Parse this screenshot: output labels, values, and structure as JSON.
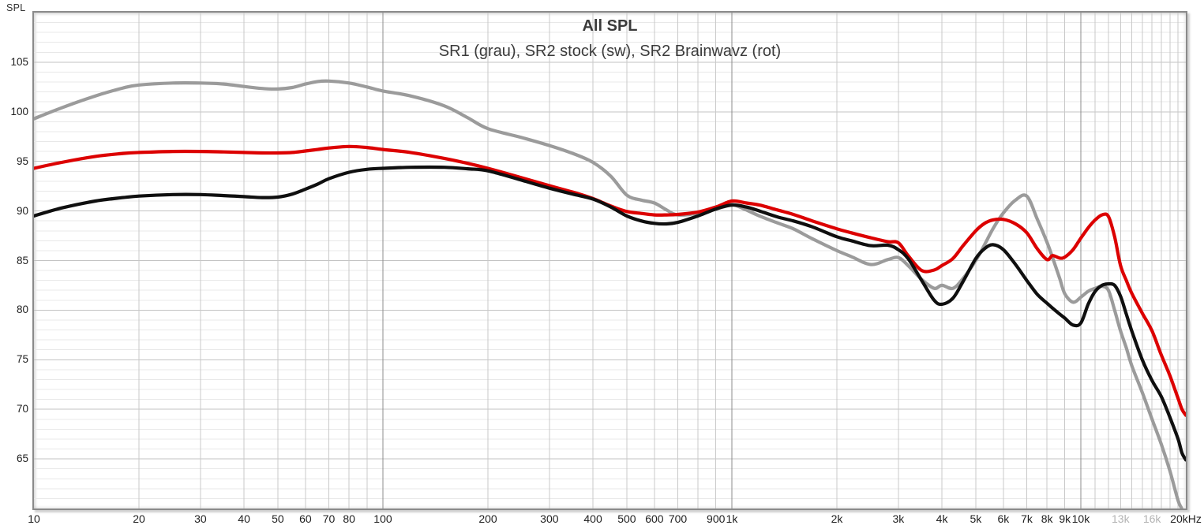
{
  "chart": {
    "spl_axis_label": "SPL",
    "title": "All SPL",
    "subtitle": "SR1 (grau), SR2 stock (sw), SR2 Brainwavz (rot)",
    "colors": {
      "background": "#ffffff",
      "border": "#8a8a8a",
      "grid_h_minor": "#e8e8e8",
      "grid_h_major": "#c3c3c3",
      "grid_v_minor": "#c9c9c9",
      "grid_v_decade": "#8c8c8c",
      "text_dark": "#3a3a3a",
      "text_tick": "#1f1f1f",
      "text_muted": "#b3b3b3"
    }
  },
  "chart_data": {
    "type": "line",
    "title": "All SPL",
    "subtitle": "SR1 (grau), SR2 stock (sw), SR2 Brainwavz (rot)",
    "ylabel": "SPL",
    "x_scale": "log",
    "xlim": [
      10,
      20000
    ],
    "ylim": [
      60,
      110
    ],
    "grid": {
      "h_minor_step_db": 1,
      "h_major_step_db": 5,
      "v_minor": [
        20,
        30,
        40,
        50,
        60,
        70,
        80,
        90,
        200,
        300,
        400,
        500,
        600,
        700,
        800,
        900,
        2000,
        3000,
        4000,
        5000,
        6000,
        7000,
        8000,
        9000,
        11000,
        12000,
        13000,
        14000,
        15000,
        16000,
        17000,
        18000,
        19000
      ],
      "v_decade": [
        100,
        1000,
        10000
      ]
    },
    "y_tick_labels": [
      105,
      100,
      95,
      90,
      85,
      80,
      75,
      70,
      65
    ],
    "x_tick_labels": [
      {
        "label": "10",
        "f": 10,
        "muted": false
      },
      {
        "label": "20",
        "f": 20,
        "muted": false
      },
      {
        "label": "30",
        "f": 30,
        "muted": false
      },
      {
        "label": "40",
        "f": 40,
        "muted": false
      },
      {
        "label": "50",
        "f": 50,
        "muted": false
      },
      {
        "label": "60",
        "f": 60,
        "muted": false
      },
      {
        "label": "70",
        "f": 70,
        "muted": false
      },
      {
        "label": "80",
        "f": 80,
        "muted": false
      },
      {
        "label": "100",
        "f": 100,
        "muted": false
      },
      {
        "label": "200",
        "f": 200,
        "muted": false
      },
      {
        "label": "300",
        "f": 300,
        "muted": false
      },
      {
        "label": "400",
        "f": 400,
        "muted": false
      },
      {
        "label": "500",
        "f": 500,
        "muted": false
      },
      {
        "label": "600",
        "f": 600,
        "muted": false
      },
      {
        "label": "700",
        "f": 700,
        "muted": false
      },
      {
        "label": "900",
        "f": 900,
        "muted": false
      },
      {
        "label": "1k",
        "f": 1000,
        "muted": false
      },
      {
        "label": "2k",
        "f": 2000,
        "muted": false
      },
      {
        "label": "3k",
        "f": 3000,
        "muted": false
      },
      {
        "label": "4k",
        "f": 4000,
        "muted": false
      },
      {
        "label": "5k",
        "f": 5000,
        "muted": false
      },
      {
        "label": "6k",
        "f": 6000,
        "muted": false
      },
      {
        "label": "7k",
        "f": 7000,
        "muted": false
      },
      {
        "label": "8k",
        "f": 8000,
        "muted": false
      },
      {
        "label": "9k",
        "f": 9000,
        "muted": false
      },
      {
        "label": "10k",
        "f": 10000,
        "muted": false
      },
      {
        "label": "13k",
        "f": 13000,
        "muted": true
      },
      {
        "label": "16k",
        "f": 16000,
        "muted": true
      },
      {
        "label": "20kHz",
        "f": 20000,
        "muted": false
      }
    ],
    "x": [
      10,
      12,
      15,
      18,
      20,
      25,
      30,
      35,
      40,
      45,
      50,
      55,
      60,
      65,
      70,
      80,
      90,
      100,
      120,
      150,
      175,
      200,
      250,
      300,
      350,
      400,
      450,
      500,
      550,
      600,
      650,
      700,
      800,
      900,
      1000,
      1100,
      1200,
      1350,
      1500,
      1700,
      2000,
      2200,
      2500,
      2800,
      3000,
      3200,
      3500,
      3800,
      4000,
      4300,
      4600,
      5000,
      5300,
      5600,
      6000,
      6500,
      7000,
      7500,
      8000,
      8300,
      8700,
      9000,
      9500,
      10000,
      10500,
      11000,
      11500,
      12000,
      12500,
      13000,
      13500,
      14000,
      15000,
      16000,
      17000,
      18000,
      19000,
      19500,
      20000
    ],
    "series": [
      {
        "name": "SR1",
        "color_label": "grau",
        "color": "#9b9b9b",
        "z": 0,
        "values": [
          99.3,
          100.4,
          101.6,
          102.4,
          102.7,
          102.9,
          102.9,
          102.8,
          102.55,
          102.35,
          102.3,
          102.45,
          102.8,
          103.05,
          103.1,
          102.9,
          102.5,
          102.1,
          101.6,
          100.6,
          99.4,
          98.3,
          97.4,
          96.6,
          95.8,
          94.9,
          93.5,
          91.6,
          91.1,
          90.8,
          90.1,
          89.6,
          89.8,
          90.4,
          90.65,
          90.1,
          89.5,
          88.8,
          88.2,
          87.2,
          86.0,
          85.4,
          84.6,
          85.1,
          85.3,
          84.5,
          83.1,
          82.2,
          82.5,
          82.2,
          83.2,
          85.0,
          86.6,
          88.2,
          89.8,
          91.1,
          91.5,
          89.2,
          86.85,
          85.3,
          83.2,
          81.65,
          80.8,
          81.3,
          81.9,
          82.2,
          82.4,
          82.0,
          80.0,
          77.9,
          76.2,
          74.4,
          71.7,
          69.0,
          66.5,
          63.8,
          60.8,
          59.9,
          58.3
        ]
      },
      {
        "name": "SR2 stock",
        "color_label": "sw",
        "color": "#0f0f0f",
        "z": 2,
        "values": [
          89.5,
          90.3,
          91.0,
          91.35,
          91.5,
          91.65,
          91.65,
          91.55,
          91.45,
          91.35,
          91.4,
          91.7,
          92.2,
          92.7,
          93.25,
          93.9,
          94.2,
          94.3,
          94.4,
          94.4,
          94.25,
          94.05,
          93.1,
          92.3,
          91.7,
          91.2,
          90.4,
          89.5,
          89.0,
          88.75,
          88.7,
          88.85,
          89.5,
          90.2,
          90.6,
          90.4,
          90.0,
          89.4,
          89.0,
          88.4,
          87.4,
          87.0,
          86.5,
          86.55,
          86.1,
          85.2,
          83.0,
          81.0,
          80.6,
          81.2,
          82.9,
          85.2,
          86.2,
          86.6,
          86.1,
          84.6,
          83.0,
          81.6,
          80.7,
          80.2,
          79.6,
          79.2,
          78.5,
          78.7,
          80.6,
          81.9,
          82.5,
          82.65,
          82.5,
          81.4,
          79.6,
          77.9,
          75.0,
          72.9,
          71.3,
          69.2,
          67.0,
          65.6,
          64.9
        ]
      },
      {
        "name": "SR2 Brainwavz",
        "color_label": "rot",
        "color": "#dc0000",
        "z": 1,
        "values": [
          94.3,
          94.9,
          95.5,
          95.8,
          95.9,
          96.0,
          96.0,
          95.95,
          95.9,
          95.85,
          95.85,
          95.9,
          96.05,
          96.2,
          96.35,
          96.5,
          96.4,
          96.2,
          95.9,
          95.3,
          94.8,
          94.3,
          93.35,
          92.55,
          91.9,
          91.25,
          90.5,
          89.95,
          89.75,
          89.6,
          89.6,
          89.65,
          89.9,
          90.4,
          91.0,
          90.8,
          90.6,
          90.1,
          89.65,
          89.0,
          88.2,
          87.8,
          87.3,
          86.9,
          86.8,
          85.5,
          84.0,
          84.05,
          84.5,
          85.2,
          86.5,
          88.0,
          88.75,
          89.1,
          89.15,
          88.7,
          87.8,
          86.2,
          85.1,
          85.5,
          85.25,
          85.35,
          86.1,
          87.25,
          88.3,
          89.1,
          89.6,
          89.45,
          87.4,
          84.5,
          83.0,
          81.7,
          79.7,
          77.9,
          75.5,
          73.4,
          71.1,
          70.0,
          69.4
        ]
      }
    ]
  }
}
